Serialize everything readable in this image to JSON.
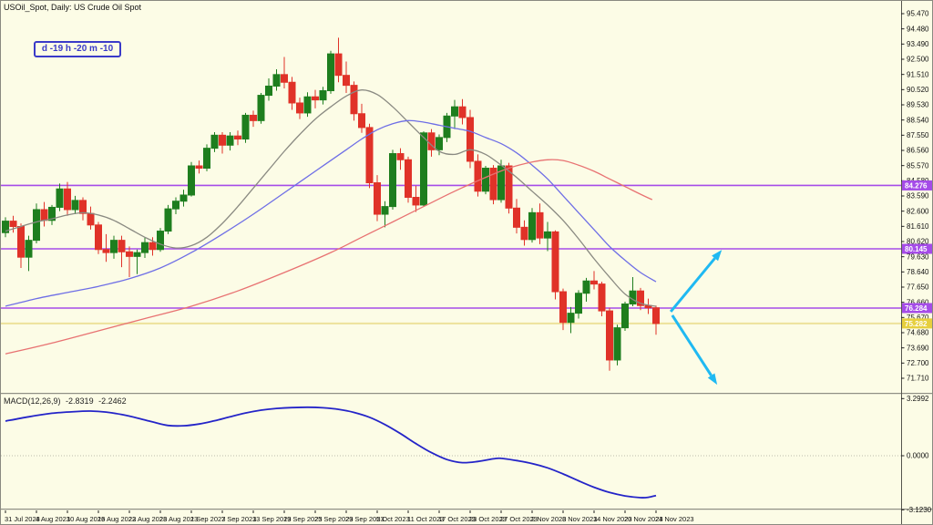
{
  "title": "USOil_Spot, Daily: US Crude Oil Spot",
  "countdown": "d -19 h -20 m -10",
  "colors": {
    "background": "#FCFCE6",
    "bull": "#1E7E1E",
    "bear": "#E03228",
    "ma_fast": "#8A8A82",
    "ma_medium": "#6E6EE6",
    "ma_slow": "#E87272",
    "support_line": "#A54CE8",
    "bid_line": "#EDE29A",
    "bid_tag": "#E6CF3E",
    "arrow": "#1FB9F2",
    "macd_line": "#2424C8",
    "zero_line": "#BBBBAC",
    "separator": "#8F8F84",
    "axis_line": "#55554D",
    "text": "#000000"
  },
  "chart_data": [
    {
      "type": "candlestick",
      "title": "US Crude Oil Spot, Daily",
      "y_axis_labels": [
        "95.470",
        "94.480",
        "93.490",
        "92.500",
        "91.510",
        "90.520",
        "89.530",
        "88.540",
        "87.550",
        "86.560",
        "85.570",
        "84.580",
        "83.590",
        "82.600",
        "81.610",
        "80.620",
        "79.630",
        "78.640",
        "77.650",
        "76.660",
        "75.670",
        "74.680",
        "73.690",
        "72.700",
        "71.710"
      ],
      "x_tick_labels": [
        "31 Jul 2023",
        "4 Aug 2023",
        "10 Aug 2023",
        "16 Aug 2023",
        "22 Aug 2023",
        "28 Aug 2023",
        "1 Sep 2023",
        "7 Sep 2023",
        "13 Sep 2023",
        "19 Sep 2023",
        "25 Sep 2023",
        "29 Sep 2023",
        "5 Oct 2023",
        "11 Oct 2023",
        "17 Oct 2023",
        "23 Oct 2023",
        "27 Oct 2023",
        "2 Nov 2023",
        "8 Nov 2023",
        "14 Nov 2023",
        "20 Nov 2023",
        "24 Nov 2023"
      ],
      "x_tick_step": 4,
      "ohlc": [
        [
          81.2,
          82.2,
          80.9,
          81.95
        ],
        [
          81.95,
          82.3,
          81.2,
          81.6
        ],
        [
          81.6,
          81.8,
          78.9,
          79.6
        ],
        [
          79.6,
          81.0,
          78.7,
          80.7
        ],
        [
          80.7,
          83.1,
          80.5,
          82.7
        ],
        [
          82.7,
          83.2,
          81.6,
          82.0
        ],
        [
          82.0,
          83.0,
          81.7,
          82.85
        ],
        [
          82.85,
          84.4,
          82.6,
          84.05
        ],
        [
          84.05,
          84.5,
          82.3,
          82.7
        ],
        [
          82.7,
          83.6,
          82.4,
          83.3
        ],
        [
          83.3,
          83.5,
          82.0,
          82.45
        ],
        [
          82.45,
          82.9,
          81.4,
          81.7
        ],
        [
          81.7,
          81.9,
          79.8,
          80.1
        ],
        [
          80.1,
          81.1,
          79.3,
          79.9
        ],
        [
          79.9,
          81.0,
          79.5,
          80.7
        ],
        [
          80.7,
          81.0,
          78.95,
          79.95
        ],
        [
          79.95,
          80.3,
          78.3,
          79.65
        ],
        [
          79.65,
          80.1,
          78.5,
          79.9
        ],
        [
          79.9,
          80.9,
          79.55,
          80.55
        ],
        [
          80.55,
          80.9,
          79.7,
          80.1
        ],
        [
          80.1,
          81.5,
          79.95,
          81.3
        ],
        [
          81.3,
          83.0,
          81.1,
          82.75
        ],
        [
          82.75,
          83.5,
          82.4,
          83.25
        ],
        [
          83.25,
          84.0,
          82.9,
          83.65
        ],
        [
          83.65,
          85.8,
          83.55,
          85.55
        ],
        [
          85.55,
          85.9,
          85.05,
          85.4
        ],
        [
          85.4,
          86.95,
          85.2,
          86.7
        ],
        [
          86.7,
          87.75,
          86.45,
          87.55
        ],
        [
          87.55,
          87.75,
          86.35,
          86.9
        ],
        [
          86.9,
          87.75,
          86.55,
          87.5
        ],
        [
          87.5,
          87.85,
          86.9,
          87.3
        ],
        [
          87.3,
          89.0,
          87.05,
          88.85
        ],
        [
          88.85,
          89.15,
          88.1,
          88.5
        ],
        [
          88.5,
          90.3,
          88.3,
          90.15
        ],
        [
          90.15,
          91.25,
          89.8,
          90.75
        ],
        [
          90.75,
          91.85,
          90.45,
          91.5
        ],
        [
          91.5,
          92.65,
          90.6,
          91.0
        ],
        [
          91.0,
          91.35,
          89.2,
          89.65
        ],
        [
          89.65,
          90.0,
          88.6,
          89.0
        ],
        [
          89.0,
          90.35,
          88.75,
          90.05
        ],
        [
          90.05,
          90.5,
          89.3,
          89.85
        ],
        [
          89.85,
          90.7,
          89.55,
          90.45
        ],
        [
          90.45,
          93.05,
          90.25,
          92.85
        ],
        [
          92.85,
          93.9,
          91.0,
          91.45
        ],
        [
          91.45,
          92.35,
          90.3,
          90.8
        ],
        [
          90.8,
          91.05,
          88.5,
          88.95
        ],
        [
          88.95,
          89.6,
          87.7,
          88.05
        ],
        [
          88.05,
          88.3,
          84.1,
          84.45
        ],
        [
          84.45,
          84.95,
          81.95,
          82.4
        ],
        [
          82.4,
          83.25,
          81.55,
          82.9
        ],
        [
          82.9,
          86.6,
          82.7,
          86.35
        ],
        [
          86.35,
          86.7,
          85.3,
          85.95
        ],
        [
          85.95,
          86.15,
          83.15,
          83.5
        ],
        [
          83.5,
          84.25,
          82.55,
          83.0
        ],
        [
          83.0,
          87.8,
          82.9,
          87.7
        ],
        [
          87.7,
          87.95,
          86.15,
          86.6
        ],
        [
          86.6,
          87.6,
          86.25,
          87.4
        ],
        [
          87.4,
          89.0,
          87.1,
          88.8
        ],
        [
          88.8,
          89.85,
          87.95,
          89.4
        ],
        [
          89.4,
          89.9,
          88.25,
          88.7
        ],
        [
          88.7,
          89.2,
          85.4,
          85.85
        ],
        [
          85.85,
          86.3,
          83.55,
          83.9
        ],
        [
          83.9,
          85.55,
          83.7,
          85.4
        ],
        [
          85.4,
          85.6,
          83.05,
          83.35
        ],
        [
          83.35,
          85.95,
          83.15,
          85.55
        ],
        [
          85.55,
          85.75,
          82.45,
          82.8
        ],
        [
          82.8,
          83.4,
          81.15,
          81.55
        ],
        [
          81.55,
          82.0,
          80.35,
          80.75
        ],
        [
          80.75,
          82.8,
          80.55,
          82.5
        ],
        [
          82.5,
          83.1,
          80.45,
          80.85
        ],
        [
          80.85,
          81.9,
          80.0,
          81.25
        ],
        [
          81.25,
          81.35,
          76.85,
          77.35
        ],
        [
          77.35,
          77.55,
          74.85,
          75.35
        ],
        [
          75.35,
          76.35,
          74.65,
          75.95
        ],
        [
          75.95,
          77.45,
          75.6,
          77.25
        ],
        [
          77.25,
          78.25,
          76.7,
          78.05
        ],
        [
          78.05,
          78.7,
          77.5,
          77.85
        ],
        [
          77.85,
          78.0,
          75.75,
          76.1
        ],
        [
          76.1,
          76.3,
          72.2,
          72.9
        ],
        [
          72.9,
          75.2,
          72.55,
          75.0
        ],
        [
          75.0,
          76.7,
          74.8,
          76.55
        ],
        [
          76.55,
          78.3,
          76.4,
          77.4
        ],
        [
          77.4,
          77.6,
          76.15,
          76.45
        ],
        [
          76.45,
          76.9,
          75.9,
          76.3
        ],
        [
          76.3,
          76.45,
          74.55,
          75.28
        ]
      ],
      "moving_averages": [
        {
          "name": "ma-fast-gray",
          "color_key": "ma_fast",
          "points": [
            [
              0,
              81.3
            ],
            [
              2,
              81.6
            ],
            [
              4,
              81.9
            ],
            [
              6,
              82.1
            ],
            [
              8,
              82.35
            ],
            [
              10,
              82.5
            ],
            [
              12,
              82.35
            ],
            [
              14,
              82.0
            ],
            [
              16,
              81.45
            ],
            [
              18,
              80.9
            ],
            [
              20,
              80.45
            ],
            [
              22,
              80.2
            ],
            [
              24,
              80.35
            ],
            [
              26,
              80.9
            ],
            [
              28,
              81.8
            ],
            [
              30,
              82.9
            ],
            [
              32,
              84.1
            ],
            [
              34,
              85.3
            ],
            [
              36,
              86.5
            ],
            [
              38,
              87.6
            ],
            [
              40,
              88.6
            ],
            [
              42,
              89.4
            ],
            [
              44,
              90.1
            ],
            [
              46,
              90.5
            ],
            [
              48,
              90.2
            ],
            [
              50,
              89.4
            ],
            [
              52,
              88.4
            ],
            [
              54,
              87.4
            ],
            [
              56,
              86.5
            ],
            [
              58,
              86.3
            ],
            [
              60,
              86.6
            ],
            [
              62,
              86.3
            ],
            [
              64,
              85.6
            ],
            [
              66,
              84.8
            ],
            [
              68,
              83.9
            ],
            [
              70,
              83.0
            ],
            [
              72,
              82.0
            ],
            [
              74,
              80.8
            ],
            [
              76,
              79.5
            ],
            [
              78,
              78.3
            ],
            [
              80,
              77.2
            ],
            [
              82,
              76.6
            ],
            [
              84,
              76.4
            ]
          ]
        },
        {
          "name": "ma-medium-blue",
          "color_key": "ma_medium",
          "points": [
            [
              0,
              76.4
            ],
            [
              4,
              76.9
            ],
            [
              8,
              77.3
            ],
            [
              12,
              77.7
            ],
            [
              16,
              78.2
            ],
            [
              20,
              78.9
            ],
            [
              24,
              79.9
            ],
            [
              28,
              81.1
            ],
            [
              32,
              82.4
            ],
            [
              36,
              83.8
            ],
            [
              40,
              85.2
            ],
            [
              44,
              86.6
            ],
            [
              46,
              87.3
            ],
            [
              48,
              87.9
            ],
            [
              50,
              88.3
            ],
            [
              52,
              88.5
            ],
            [
              54,
              88.4
            ],
            [
              56,
              88.2
            ],
            [
              58,
              88.0
            ],
            [
              60,
              87.8
            ],
            [
              62,
              87.4
            ],
            [
              64,
              87.0
            ],
            [
              66,
              86.4
            ],
            [
              68,
              85.6
            ],
            [
              70,
              84.7
            ],
            [
              72,
              83.6
            ],
            [
              74,
              82.5
            ],
            [
              76,
              81.4
            ],
            [
              78,
              80.3
            ],
            [
              80,
              79.4
            ],
            [
              82,
              78.6
            ],
            [
              84,
              78.0
            ]
          ]
        },
        {
          "name": "ma-slow-red",
          "color_key": "ma_slow",
          "points": [
            [
              0,
              73.3
            ],
            [
              6,
              74.0
            ],
            [
              12,
              74.8
            ],
            [
              18,
              75.6
            ],
            [
              24,
              76.4
            ],
            [
              30,
              77.4
            ],
            [
              36,
              78.6
            ],
            [
              42,
              79.9
            ],
            [
              46,
              80.9
            ],
            [
              50,
              81.9
            ],
            [
              54,
              82.9
            ],
            [
              58,
              83.9
            ],
            [
              62,
              84.8
            ],
            [
              65,
              85.4
            ],
            [
              68,
              85.8
            ],
            [
              70,
              85.95
            ],
            [
              72,
              85.9
            ],
            [
              74,
              85.6
            ],
            [
              76,
              85.2
            ],
            [
              78,
              84.7
            ],
            [
              80,
              84.2
            ],
            [
              82,
              83.7
            ],
            [
              83.5,
              83.35
            ]
          ]
        }
      ],
      "horizontal_lines": [
        {
          "price": 84.276,
          "label": "84.276",
          "color_key": "support_line",
          "tag_key": "support_line"
        },
        {
          "price": 80.145,
          "label": "80.145",
          "color_key": "support_line",
          "tag_key": "support_line"
        },
        {
          "price": 76.284,
          "label": "76.284",
          "color_key": "support_line",
          "tag_key": "support_line"
        },
        {
          "price": 75.282,
          "label": "75.282",
          "color_key": "bid_line",
          "tag_key": "bid_tag"
        }
      ],
      "arrows": [
        {
          "name": "up-scenario-arrow",
          "from": [
            85.9,
            76.05
          ],
          "to": [
            92.5,
            80.08
          ]
        },
        {
          "name": "down-scenario-arrow",
          "from": [
            86.1,
            75.81
          ],
          "to": [
            91.9,
            71.29
          ]
        }
      ]
    },
    {
      "type": "line",
      "name": "MACD(12,26,9)",
      "current_values": [
        "-2.8319",
        "-2.2462"
      ],
      "y_axis_labels": [
        "3.2992",
        "0.0000",
        "-3.1230"
      ],
      "y_axis_values": [
        3.2992,
        0.0,
        -3.123
      ],
      "points": [
        [
          0,
          2.0
        ],
        [
          3,
          2.25
        ],
        [
          6,
          2.45
        ],
        [
          9,
          2.55
        ],
        [
          11,
          2.58
        ],
        [
          13,
          2.52
        ],
        [
          15,
          2.38
        ],
        [
          17,
          2.18
        ],
        [
          19,
          1.95
        ],
        [
          21,
          1.75
        ],
        [
          23,
          1.73
        ],
        [
          25,
          1.83
        ],
        [
          27,
          2.02
        ],
        [
          29,
          2.25
        ],
        [
          31,
          2.47
        ],
        [
          33,
          2.63
        ],
        [
          35,
          2.73
        ],
        [
          37,
          2.78
        ],
        [
          39,
          2.8
        ],
        [
          41,
          2.77
        ],
        [
          43,
          2.68
        ],
        [
          45,
          2.5
        ],
        [
          47,
          2.22
        ],
        [
          49,
          1.8
        ],
        [
          51,
          1.28
        ],
        [
          53,
          0.7
        ],
        [
          55,
          0.18
        ],
        [
          57,
          -0.22
        ],
        [
          59,
          -0.4
        ],
        [
          61,
          -0.33
        ],
        [
          63,
          -0.18
        ],
        [
          64,
          -0.15
        ],
        [
          66,
          -0.28
        ],
        [
          68,
          -0.45
        ],
        [
          70,
          -0.7
        ],
        [
          72,
          -1.05
        ],
        [
          74,
          -1.45
        ],
        [
          76,
          -1.82
        ],
        [
          78,
          -2.12
        ],
        [
          80,
          -2.32
        ],
        [
          82,
          -2.42
        ],
        [
          83,
          -2.4
        ],
        [
          84,
          -2.3
        ]
      ]
    }
  ]
}
